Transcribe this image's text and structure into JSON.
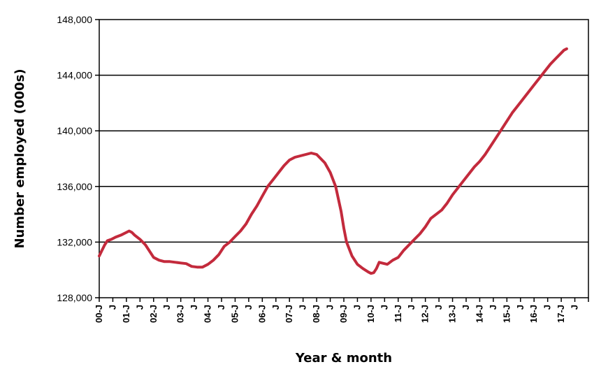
{
  "chart_data": {
    "type": "line",
    "title": "",
    "xlabel": "Year & month",
    "ylabel": "Number employed (000s)",
    "ylim": [
      128000,
      148000
    ],
    "yticks": [
      128000,
      132000,
      136000,
      140000,
      144000,
      148000
    ],
    "ytick_labels": [
      "128,000",
      "132,000",
      "136,000",
      "140,000",
      "144,000",
      "148,000"
    ],
    "xlim": [
      0,
      18
    ],
    "x_major_labels": [
      "00-J",
      "01-J",
      "02-J",
      "03-J",
      "04-J",
      "05-J",
      "06-J",
      "07-J",
      "08-J",
      "09-J",
      "10-J",
      "11-J",
      "12-J",
      "13-J",
      "14-J",
      "15-J",
      "16-J",
      "17-J"
    ],
    "x_minor_label": "J",
    "grid": true,
    "legend": "none",
    "line_color": "#C32A3C",
    "series": [
      {
        "x": [
          0.0,
          0.1,
          0.2,
          0.3,
          0.45,
          0.6,
          0.8,
          1.0,
          1.1,
          1.2,
          1.3,
          1.5,
          1.7,
          1.9,
          2.0,
          2.2,
          2.4,
          2.6,
          2.8,
          3.0,
          3.2,
          3.4,
          3.6,
          3.8,
          4.0,
          4.2,
          4.4,
          4.6,
          4.8,
          5.0,
          5.2,
          5.4,
          5.6,
          5.8,
          6.0,
          6.2,
          6.4,
          6.6,
          6.8,
          7.0,
          7.2,
          7.4,
          7.6,
          7.8,
          8.0,
          8.1,
          8.3,
          8.5,
          8.7,
          8.9,
          9.0,
          9.1,
          9.2,
          9.3,
          9.5,
          9.7,
          9.9,
          10.0,
          10.1,
          10.2,
          10.3,
          10.4,
          10.6,
          10.8,
          11.0,
          11.2,
          11.4,
          11.6,
          11.8,
          12.0,
          12.2,
          12.4,
          12.6,
          12.8,
          13.0,
          13.2,
          13.4,
          13.6,
          13.8,
          14.0,
          14.2,
          14.4,
          14.6,
          14.8,
          15.0,
          15.2,
          15.4,
          15.6,
          15.8,
          16.0,
          16.2,
          16.4,
          16.6,
          16.8,
          17.0,
          17.1,
          17.2
        ],
        "y": [
          131000,
          131400,
          131800,
          132100,
          132200,
          132350,
          132500,
          132700,
          132800,
          132700,
          132500,
          132200,
          131800,
          131200,
          130900,
          130700,
          130600,
          130600,
          130550,
          130500,
          130450,
          130250,
          130200,
          130200,
          130400,
          130700,
          131100,
          131700,
          132000,
          132400,
          132800,
          133300,
          134000,
          134600,
          135300,
          136000,
          136500,
          137000,
          137500,
          137900,
          138100,
          138200,
          138300,
          138400,
          138300,
          138100,
          137700,
          137000,
          136000,
          134200,
          133000,
          132000,
          131500,
          131000,
          130400,
          130100,
          129850,
          129750,
          129800,
          130100,
          130550,
          130500,
          130400,
          130700,
          130900,
          131400,
          131800,
          132200,
          132600,
          133100,
          133700,
          134000,
          134300,
          134800,
          135400,
          135900,
          136400,
          136900,
          137400,
          137800,
          138300,
          138900,
          139500,
          140100,
          140700,
          141300,
          141800,
          142300,
          142800,
          143300,
          143800,
          144300,
          144800,
          145200,
          145600,
          145800,
          145900
        ]
      }
    ]
  }
}
